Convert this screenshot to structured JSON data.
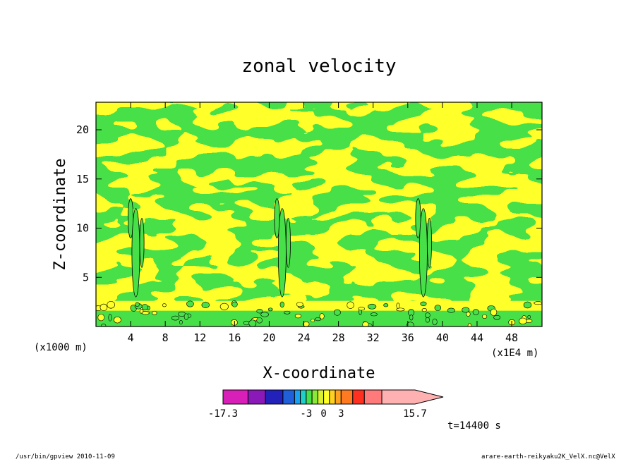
{
  "chart_data": {
    "type": "heatmap",
    "title": "zonal velocity",
    "xlabel": "X-coordinate",
    "ylabel": "Z-coordinate",
    "x_unit": "(x1E4 m)",
    "y_unit": "(x1000 m)",
    "xlim": [
      0,
      51.5
    ],
    "ylim": [
      0,
      22.8
    ],
    "x_ticks": [
      4,
      8,
      12,
      16,
      20,
      24,
      28,
      32,
      36,
      40,
      44,
      48
    ],
    "y_ticks": [
      5,
      10,
      15,
      20
    ],
    "colorbar": {
      "levels": [
        -17.3,
        -13,
        -10,
        -7,
        -5,
        -4,
        -3,
        -2,
        -1,
        0,
        1,
        2,
        3,
        5,
        7,
        10,
        15.7
      ],
      "colors": [
        "#d81fb8",
        "#8a19b8",
        "#2222bb",
        "#1f5fd8",
        "#1aa0f0",
        "#20d0c8",
        "#48e048",
        "#8ae838",
        "#d8f030",
        "#ffff2a",
        "#ffd020",
        "#ffa020",
        "#ff7a20",
        "#ff3020",
        "#ff7a7a",
        "#ffb0b0"
      ],
      "labels": [
        "-17.3",
        "-3",
        "0",
        "3",
        "15.7"
      ],
      "dominant_range": [
        -3,
        3
      ]
    },
    "vortex_columns_x": [
      4.6,
      21.5,
      37.8
    ]
  },
  "time_label": "t=14400 s",
  "footer_left": "/usr/bin/gpview  2010-11-09",
  "footer_right": "arare-earth-reikyaku2K_VelX.nc@VelX"
}
